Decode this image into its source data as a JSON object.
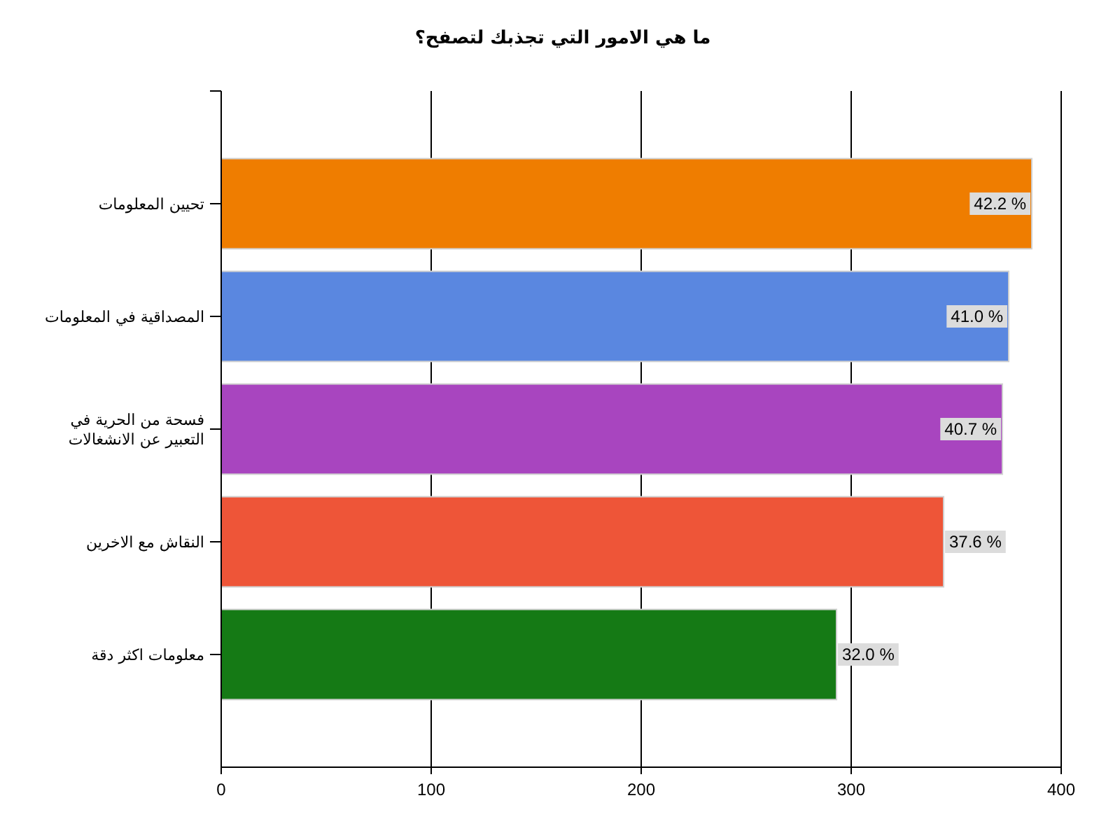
{
  "chart_data": {
    "type": "bar",
    "orientation": "horizontal",
    "title": "ما هي الامور التي تجذبك لتصفح؟",
    "categories": [
      "تحيين المعلومات",
      "المصداقية في المعلومات",
      "فسحة من الحرية في التعبير عن الانشغالات",
      "النقاش مع الاخرين",
      "معلومات اكثر دقة"
    ],
    "values": [
      386,
      375,
      372,
      344,
      293
    ],
    "colors": [
      "#ef7d00",
      "#5a87e0",
      "#a845bf",
      "#ee5538",
      "#157a15"
    ],
    "annotations": [
      {
        "text": "42.2 %",
        "x": 386,
        "y": "تحيين المعلومات"
      },
      {
        "text": "41.0 %",
        "x": 375,
        "y": "المصداقية في المعلومات"
      },
      {
        "text": "40.7 %",
        "x": 372,
        "y": "فسحة من الحرية في التعبير عن الانشغالات"
      },
      {
        "text": "37.6 %",
        "x": 344,
        "y": "النقاش مع الاخرين"
      },
      {
        "text": "32.0 %",
        "x": 293,
        "y": "معلومات اكثر دقة"
      }
    ],
    "xlim": [
      0,
      400
    ],
    "xticks": [
      0,
      100,
      200,
      300,
      400
    ],
    "grid": "x"
  }
}
